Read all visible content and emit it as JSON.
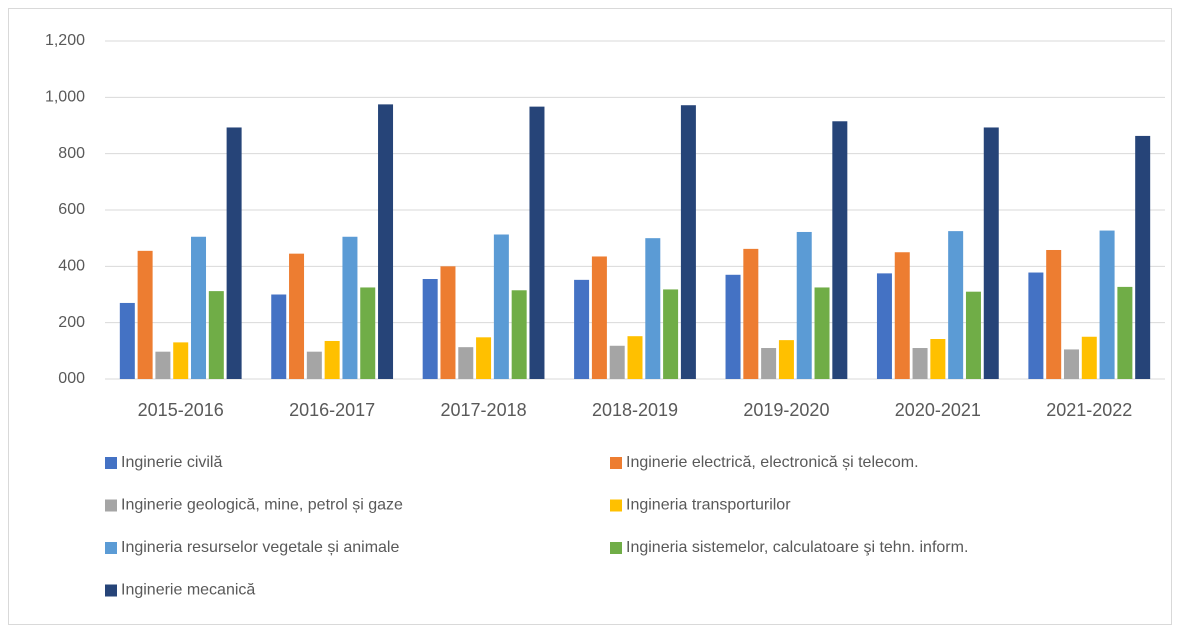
{
  "chart_data": {
    "type": "bar",
    "categories": [
      "2015-2016",
      "2016-2017",
      "2017-2018",
      "2018-2019",
      "2019-2020",
      "2020-2021",
      "2021-2022"
    ],
    "series": [
      {
        "name": "Inginerie civilă",
        "color": "#4472c4",
        "values": [
          270,
          300,
          355,
          352,
          370,
          375,
          378
        ]
      },
      {
        "name": "Inginerie electrică, electronică și telecom.",
        "color": "#ed7d31",
        "values": [
          455,
          445,
          400,
          435,
          462,
          450,
          458
        ]
      },
      {
        "name": "Inginerie geologică, mine, petrol și gaze",
        "color": "#a5a5a5",
        "values": [
          97,
          97,
          113,
          118,
          110,
          110,
          105
        ]
      },
      {
        "name": "Ingineria transporturilor",
        "color": "#ffc000",
        "values": [
          130,
          135,
          148,
          152,
          138,
          142,
          150
        ]
      },
      {
        "name": "Ingineria resurselor vegetale și animale",
        "color": "#5b9bd5",
        "values": [
          505,
          505,
          513,
          500,
          522,
          525,
          527
        ]
      },
      {
        "name": "Ingineria sistemelor, calculatoare şi tehn. inform.",
        "color": "#70ad47",
        "values": [
          312,
          325,
          315,
          318,
          325,
          310,
          327
        ]
      },
      {
        "name": "Inginerie mecanică",
        "color": "#264478",
        "values": [
          893,
          975,
          967,
          972,
          915,
          893,
          863
        ]
      }
    ],
    "ylim": [
      0,
      1200
    ],
    "yticks": [
      {
        "value": 0,
        "label": "000"
      },
      200,
      400,
      600,
      800,
      {
        "value": 1000,
        "label": "1,000"
      },
      {
        "value": 1200,
        "label": "1,200"
      }
    ],
    "grid": true,
    "legend": "bottom"
  }
}
